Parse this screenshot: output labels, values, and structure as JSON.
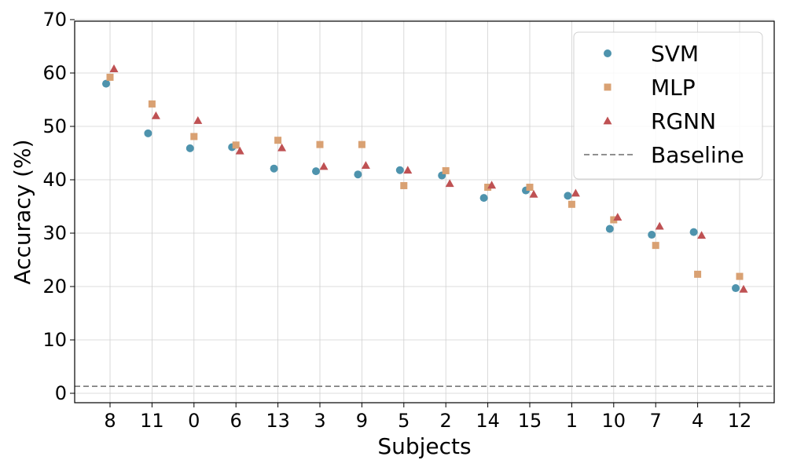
{
  "chart_data": {
    "type": "scatter",
    "title": "",
    "xlabel": "Subjects",
    "ylabel": "Accuracy (%)",
    "ylim": [
      0,
      70
    ],
    "yticks": [
      0,
      10,
      20,
      30,
      40,
      50,
      60,
      70
    ],
    "grid": true,
    "legend_position": "top-right",
    "categories": [
      "8",
      "11",
      "0",
      "6",
      "13",
      "3",
      "9",
      "5",
      "2",
      "14",
      "15",
      "1",
      "10",
      "7",
      "4",
      "12"
    ],
    "series": [
      {
        "name": "SVM",
        "marker": "circle",
        "color": "#4e93ad",
        "values": [
          58.0,
          48.7,
          45.9,
          46.1,
          42.1,
          41.6,
          41.0,
          41.8,
          40.8,
          36.6,
          38.0,
          37.0,
          30.8,
          29.7,
          30.2,
          19.7
        ]
      },
      {
        "name": "MLP",
        "marker": "square",
        "color": "#d9a173",
        "values": [
          59.2,
          54.2,
          48.1,
          46.5,
          47.4,
          46.6,
          46.6,
          38.9,
          41.7,
          38.6,
          38.6,
          35.4,
          32.5,
          27.7,
          22.3,
          21.9
        ]
      },
      {
        "name": "RGNN",
        "marker": "triangle",
        "color": "#bf5153",
        "values": [
          60.8,
          52.0,
          51.1,
          45.4,
          46.0,
          42.5,
          42.7,
          41.8,
          39.3,
          39.0,
          37.3,
          37.5,
          33.0,
          31.3,
          29.6,
          19.5
        ]
      }
    ],
    "baseline": {
      "name": "Baseline",
      "value": 1.3,
      "color": "#808080",
      "style": "dashed"
    }
  }
}
